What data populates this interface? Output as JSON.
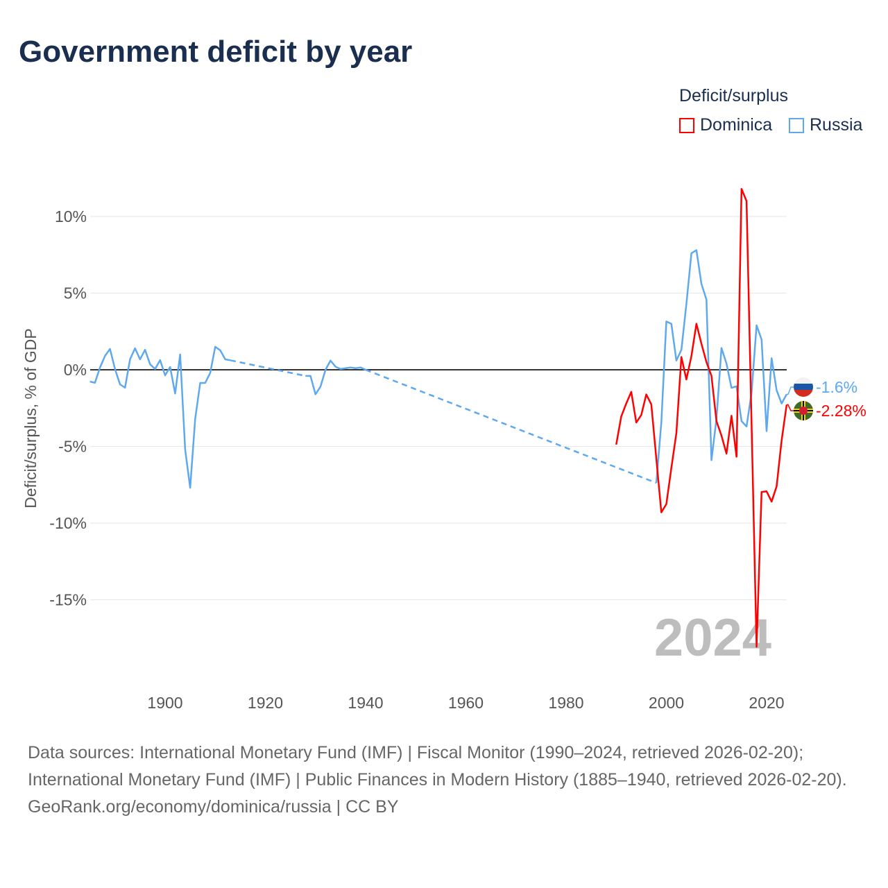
{
  "title": "Government deficit by year",
  "legend": {
    "title": "Deficit/surplus",
    "items": [
      {
        "name": "Dominica",
        "color": "#ff0000"
      },
      {
        "name": "Russia",
        "color": "#5ea8ee"
      }
    ]
  },
  "chart_data": {
    "type": "line",
    "title": "Government deficit by year",
    "ylabel": "Deficit/surplus, % of GDP",
    "xlim": [
      1885,
      2024
    ],
    "ylim": [
      -19,
      12.5
    ],
    "x_ticks": [
      "1900",
      "1920",
      "1940",
      "1960",
      "1980",
      "2000",
      "2020"
    ],
    "y_ticks": [
      {
        "v": 10,
        "label": "10%"
      },
      {
        "v": 5,
        "label": "5%"
      },
      {
        "v": 0,
        "label": "0%"
      },
      {
        "v": -5,
        "label": "-5%"
      },
      {
        "v": -10,
        "label": "-10%"
      },
      {
        "v": -15,
        "label": "-15%"
      }
    ],
    "year_watermark": "2024",
    "series": [
      {
        "name": "Russia",
        "color": "#5ea8ee",
        "end_label": "-1.6%",
        "points": [
          [
            1885,
            -0.77
          ],
          [
            1886,
            -0.85
          ],
          [
            1887,
            0.14
          ],
          [
            1888,
            0.9
          ],
          [
            1889,
            1.36
          ],
          [
            1890,
            0.05
          ],
          [
            1891,
            -0.95
          ],
          [
            1892,
            -1.17
          ],
          [
            1893,
            0.68
          ],
          [
            1894,
            1.4
          ],
          [
            1895,
            0.68
          ],
          [
            1896,
            1.3
          ],
          [
            1897,
            0.36
          ],
          [
            1898,
            0.05
          ],
          [
            1899,
            0.63
          ],
          [
            1900,
            -0.36
          ],
          [
            1901,
            0.18
          ],
          [
            1902,
            -1.55
          ],
          [
            1903,
            1.0
          ],
          [
            1904,
            -5.2
          ],
          [
            1905,
            -7.7
          ],
          [
            1906,
            -3.2
          ],
          [
            1907,
            -0.86
          ],
          [
            1908,
            -0.86
          ],
          [
            1909,
            -0.2
          ],
          [
            1910,
            1.5
          ],
          [
            1911,
            1.27
          ],
          [
            1912,
            0.68
          ],
          [
            1913,
            0.62
          ],
          null,
          [
            1928,
            -0.4
          ],
          [
            1929,
            -0.4
          ],
          [
            1930,
            -1.6
          ],
          [
            1931,
            -1.1
          ],
          [
            1932,
            0.0
          ],
          [
            1933,
            0.6
          ],
          [
            1934,
            0.2
          ],
          [
            1935,
            0.05
          ],
          [
            1936,
            0.1
          ],
          [
            1937,
            0.15
          ],
          [
            1938,
            0.1
          ],
          [
            1939,
            0.15
          ],
          [
            1940,
            0.0
          ],
          null,
          [
            1998,
            -7.38
          ],
          [
            1999,
            -3.44
          ],
          [
            2000,
            3.15
          ],
          [
            2001,
            3.0
          ],
          [
            2002,
            0.6
          ],
          [
            2003,
            1.3
          ],
          [
            2004,
            4.3
          ],
          [
            2005,
            7.6
          ],
          [
            2006,
            7.8
          ],
          [
            2007,
            5.6
          ],
          [
            2008,
            4.57
          ],
          [
            2009,
            -5.9
          ],
          [
            2010,
            -3.2
          ],
          [
            2011,
            1.42
          ],
          [
            2012,
            0.4
          ],
          [
            2013,
            -1.18
          ],
          [
            2014,
            -1.08
          ],
          [
            2015,
            -3.35
          ],
          [
            2016,
            -3.7
          ],
          [
            2017,
            -1.5
          ],
          [
            2018,
            2.9
          ],
          [
            2019,
            1.97
          ],
          [
            2020,
            -4.0
          ],
          [
            2021,
            0.75
          ],
          [
            2022,
            -1.34
          ],
          [
            2023,
            -2.2
          ],
          [
            2024,
            -1.6
          ]
        ]
      },
      {
        "name": "Dominica",
        "color": "#ff0000",
        "end_label": "-2.28%",
        "points": [
          [
            1990,
            -4.88
          ],
          [
            1991,
            -3.05
          ],
          [
            1992,
            -2.2
          ],
          [
            1993,
            -1.44
          ],
          [
            1994,
            -3.44
          ],
          [
            1995,
            -2.95
          ],
          [
            1996,
            -1.61
          ],
          [
            1997,
            -2.26
          ],
          [
            1998,
            -5.8
          ],
          [
            1999,
            -9.3
          ],
          [
            2000,
            -8.76
          ],
          [
            2001,
            -6.4
          ],
          [
            2002,
            -4.13
          ],
          [
            2003,
            0.83
          ],
          [
            2004,
            -0.63
          ],
          [
            2005,
            0.89
          ],
          [
            2006,
            3.0
          ],
          [
            2007,
            1.7
          ],
          [
            2008,
            0.5
          ],
          [
            2009,
            -0.4
          ],
          [
            2010,
            -3.35
          ],
          [
            2011,
            -4.3
          ],
          [
            2012,
            -5.47
          ],
          [
            2013,
            -3.0
          ],
          [
            2014,
            -5.67
          ],
          [
            2015,
            11.8
          ],
          [
            2016,
            11.0
          ],
          [
            2017,
            -3.5
          ],
          [
            2018,
            -18.07
          ],
          [
            2019,
            -7.97
          ],
          [
            2020,
            -7.93
          ],
          [
            2021,
            -8.6
          ],
          [
            2022,
            -7.6
          ],
          [
            2023,
            -4.6
          ],
          [
            2024,
            -2.28
          ]
        ]
      }
    ]
  },
  "footer": {
    "sources": "Data sources: International Monetary Fund (IMF) | Fiscal Monitor (1990–2024, retrieved 2026-02-20); International Monetary Fund (IMF) | Public Finances in Modern History (1885–1940, retrieved 2026-02-20).",
    "credit": "GeoRank.org/economy/dominica/russia | CC BY"
  }
}
